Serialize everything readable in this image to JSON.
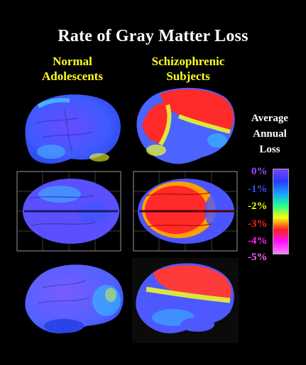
{
  "title": "Rate of Gray Matter Loss",
  "columns": {
    "normal": [
      "Normal",
      "Adolescents"
    ],
    "schizophrenic": [
      "Schizophrenic",
      "Subjects"
    ]
  },
  "legend": {
    "title": [
      "Average",
      "Annual",
      "Loss"
    ],
    "labels": [
      {
        "text": "0%",
        "color": "#9b4dff"
      },
      {
        "text": "-1%",
        "color": "#3c4dff"
      },
      {
        "text": "-2%",
        "color": "#f2ff00"
      },
      {
        "text": "-3%",
        "color": "#ff2020"
      },
      {
        "text": "-4%",
        "color": "#ff22ff"
      },
      {
        "text": "-5%",
        "color": "#ff66ff"
      }
    ],
    "gradient": [
      "#7a44ff",
      "#2a3aff",
      "#1aa0ff",
      "#20ff90",
      "#f4ff10",
      "#ff2020",
      "#ff10ff",
      "#ff80ff"
    ]
  },
  "panels": [
    {
      "group": "normal",
      "view": "lateral",
      "colors": [
        "#6a4cff",
        "#3f5aff",
        "#48c6ff"
      ]
    },
    {
      "group": "normal",
      "view": "top",
      "colors": [
        "#6a4cff",
        "#3b55ff",
        "#38c0ff"
      ]
    },
    {
      "group": "normal",
      "view": "medial",
      "colors": [
        "#7a5bff",
        "#4f62ff",
        "#31c6ff"
      ]
    },
    {
      "group": "schizophrenic",
      "view": "lateral",
      "colors": [
        "#ff2a2a",
        "#f3ff20",
        "#4b63ff"
      ]
    },
    {
      "group": "schizophrenic",
      "view": "top",
      "colors": [
        "#ff2a2a",
        "#ffa000",
        "#4a55ff"
      ]
    },
    {
      "group": "schizophrenic",
      "view": "medial",
      "colors": [
        "#ff3a3a",
        "#f3ff20",
        "#4d58ff"
      ]
    }
  ]
}
